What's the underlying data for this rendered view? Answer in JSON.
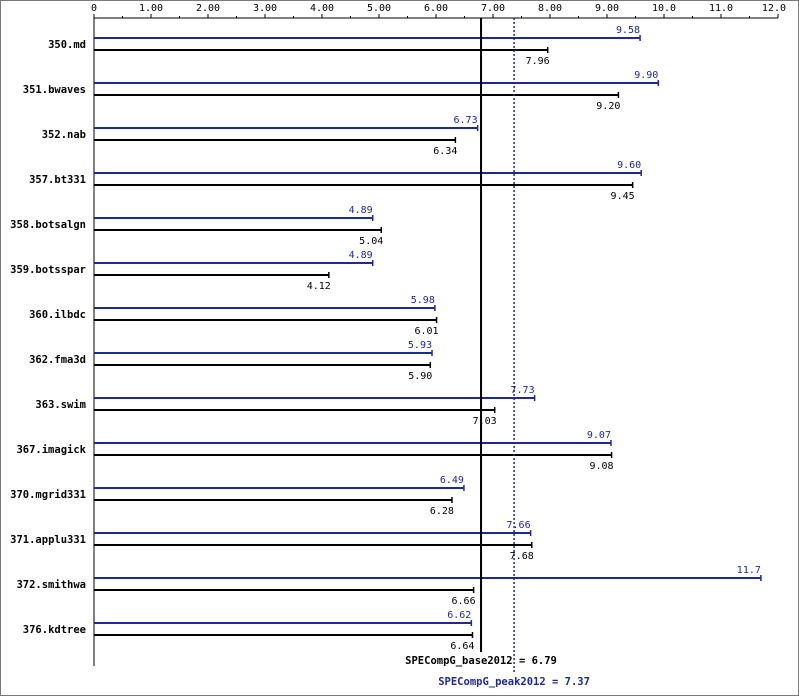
{
  "chart_data": {
    "type": "bar",
    "orientation": "horizontal",
    "axis": {
      "min": 0,
      "max": 12,
      "position": "top",
      "tick_labels": [
        "0",
        "1.00",
        "2.00",
        "3.00",
        "4.00",
        "5.00",
        "6.00",
        "7.00",
        "8.00",
        "9.00",
        "10.0",
        "11.0",
        "12.0"
      ]
    },
    "colors": {
      "base": "#000000",
      "peak": "#1f2a8c"
    },
    "categories": [
      "350.md",
      "351.bwaves",
      "352.nab",
      "357.bt331",
      "358.botsalgn",
      "359.botsspar",
      "360.ilbdc",
      "362.fma3d",
      "363.swim",
      "367.imagick",
      "370.mgrid331",
      "371.applu331",
      "372.smithwa",
      "376.kdtree"
    ],
    "series": [
      {
        "key": "peak",
        "values": [
          9.58,
          9.9,
          6.73,
          9.6,
          4.89,
          4.89,
          5.98,
          5.93,
          7.73,
          9.07,
          6.49,
          7.66,
          11.7,
          6.62
        ],
        "labels": [
          "9.58",
          "9.90",
          "6.73",
          "9.60",
          "4.89",
          "4.89",
          "5.98",
          "5.93",
          "7.73",
          "9.07",
          "6.49",
          "7.66",
          "11.7",
          "6.62"
        ]
      },
      {
        "key": "base",
        "values": [
          7.96,
          9.2,
          6.34,
          9.45,
          5.04,
          4.12,
          6.01,
          5.9,
          7.03,
          9.08,
          6.28,
          7.68,
          6.66,
          6.64
        ],
        "labels": [
          "7.96",
          "9.20",
          "6.34",
          "9.45",
          "5.04",
          "4.12",
          "6.01",
          "5.90",
          "7.03",
          "9.08",
          "6.28",
          "7.68",
          "6.66",
          "6.64"
        ]
      }
    ],
    "reference_lines": [
      {
        "key": "base",
        "value": 6.79,
        "label": "SPECompG_base2012 = 6.79",
        "style": "solid"
      },
      {
        "key": "peak",
        "value": 7.37,
        "label": "SPECompG_peak2012 = 7.37",
        "style": "dotted"
      }
    ]
  }
}
